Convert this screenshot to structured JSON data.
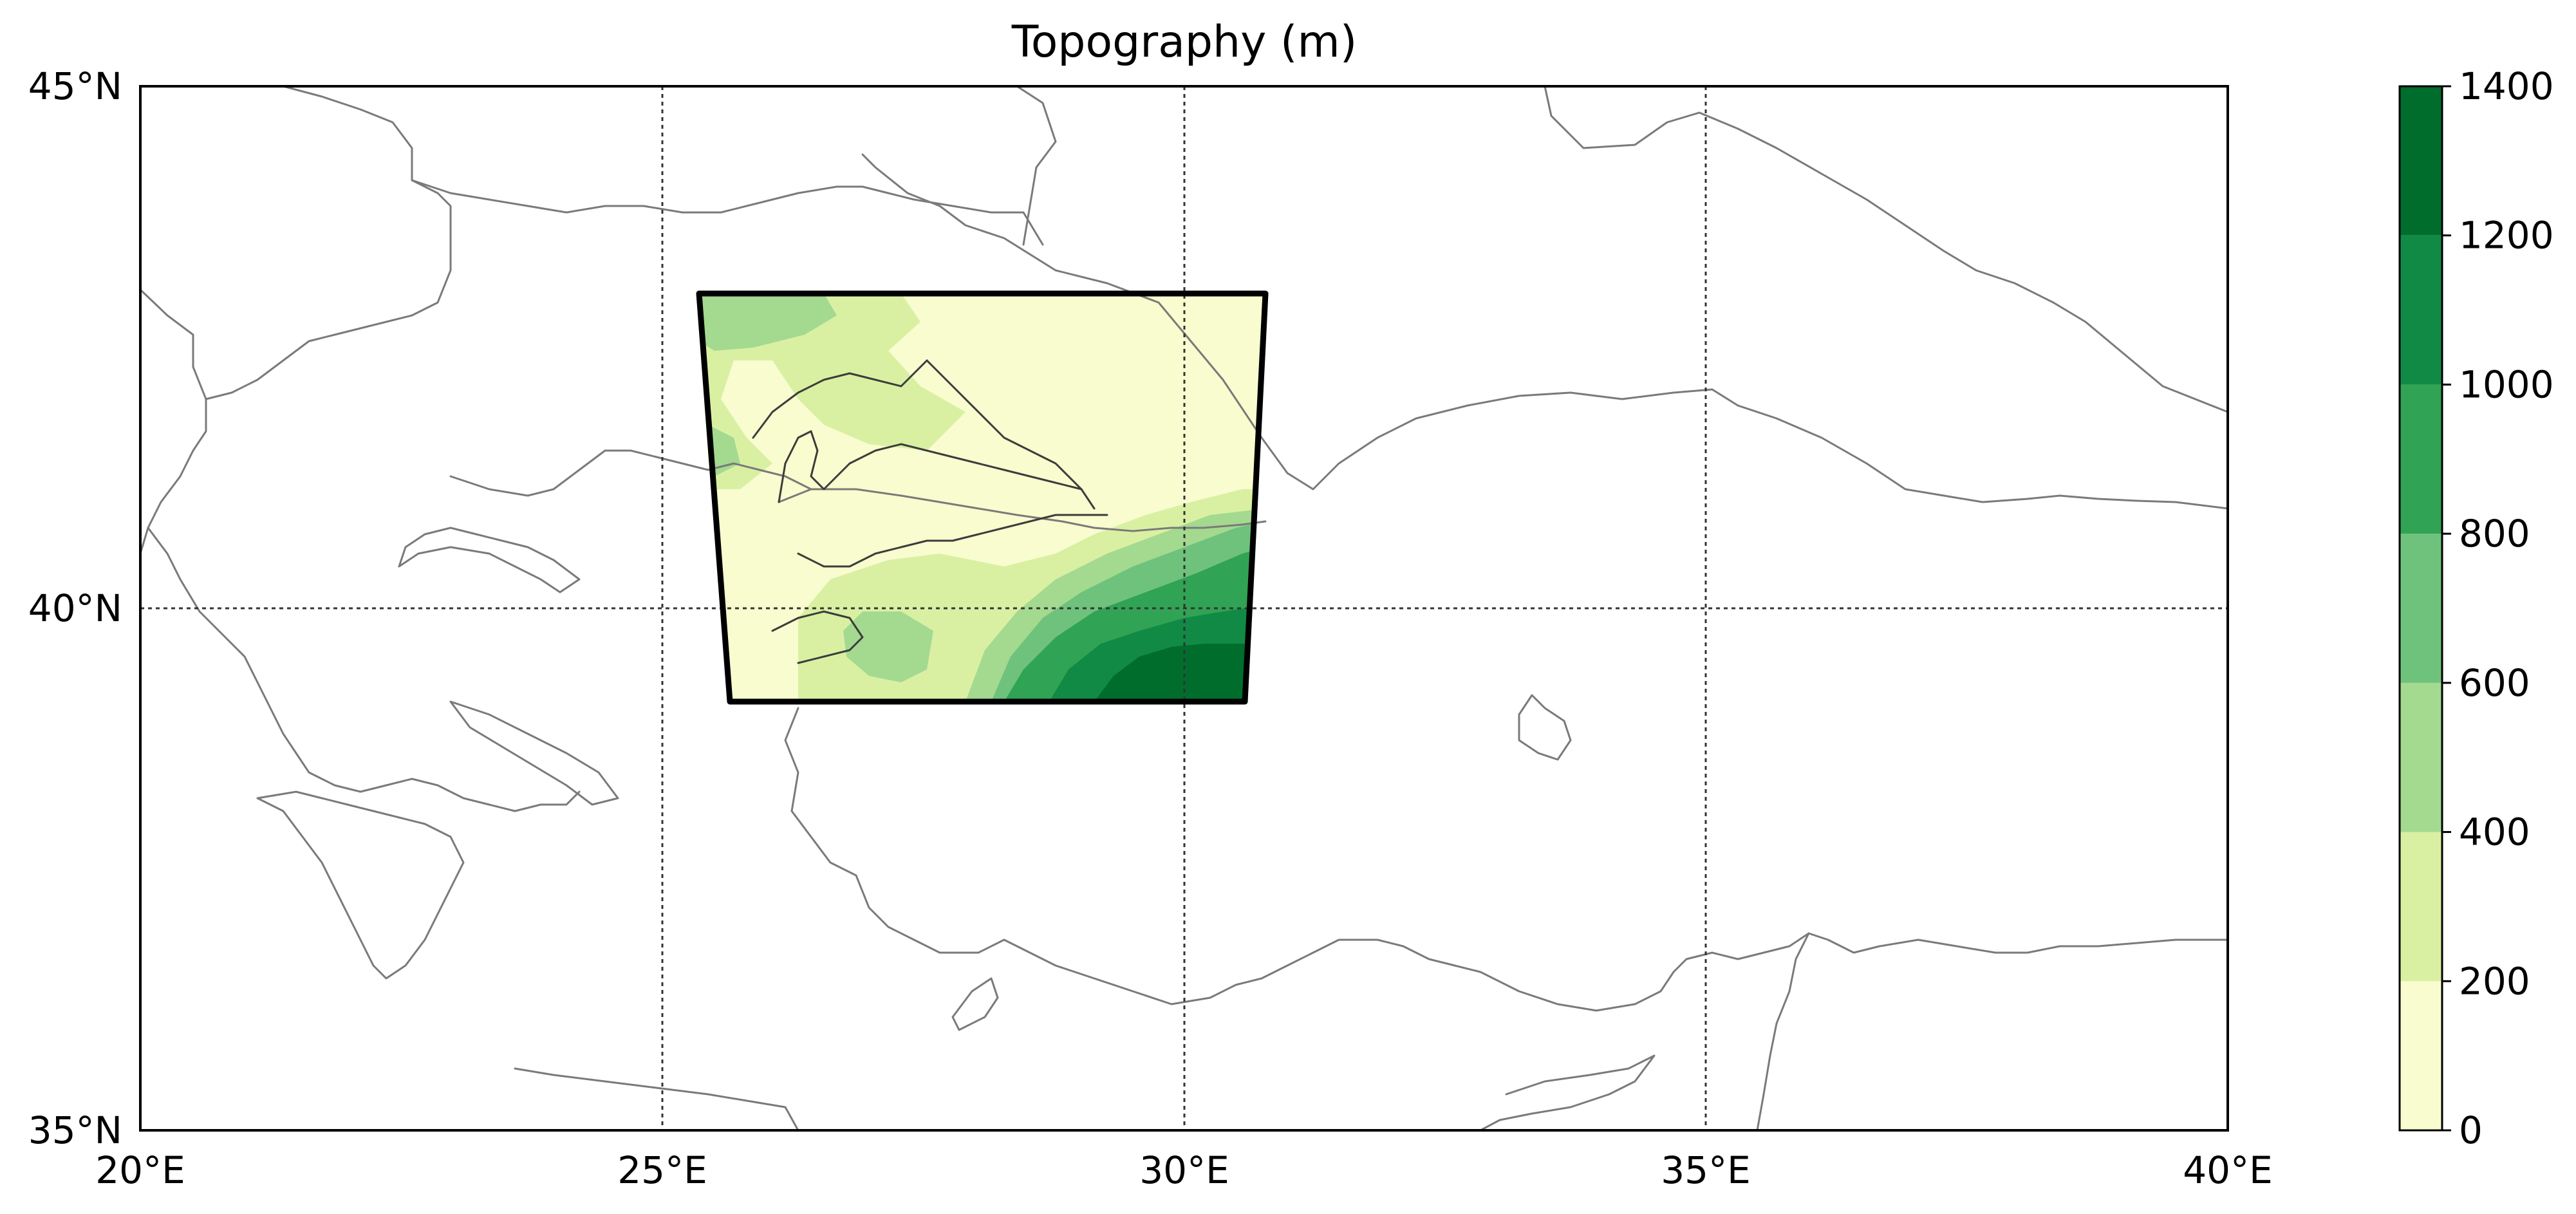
{
  "title": "Topography (m)",
  "map": {
    "lon_range": [
      20,
      40
    ],
    "lat_range": [
      35,
      45
    ],
    "lon_ticks": [
      {
        "value": 20,
        "label": "20°E"
      },
      {
        "value": 25,
        "label": "25°E"
      },
      {
        "value": 30,
        "label": "30°E"
      },
      {
        "value": 35,
        "label": "35°E"
      },
      {
        "value": 40,
        "label": "40°E"
      }
    ],
    "lat_ticks": [
      {
        "value": 35,
        "label": "35°N"
      },
      {
        "value": 40,
        "label": "40°N"
      },
      {
        "value": 45,
        "label": "45°N"
      }
    ],
    "gridlines": true,
    "gridline_style": "dotted",
    "domain_box": {
      "corners_lonlat": [
        [
          25.4,
          43.0
        ],
        [
          30.8,
          43.0
        ],
        [
          30.6,
          39.1
        ],
        [
          25.7,
          39.1
        ]
      ],
      "edge_color": "#000000"
    }
  },
  "colorbar": {
    "levels": [
      0,
      200,
      400,
      600,
      800,
      1000,
      1200,
      1400
    ],
    "labels": [
      "0",
      "200",
      "400",
      "600",
      "800",
      "1000",
      "1200",
      "1400"
    ],
    "colors": [
      "#f8fcce",
      "#d9f0a3",
      "#a4d990",
      "#6fc27c",
      "#31a354",
      "#118a45",
      "#006d2c",
      "#005a26"
    ],
    "colormap": "YlGn"
  }
}
